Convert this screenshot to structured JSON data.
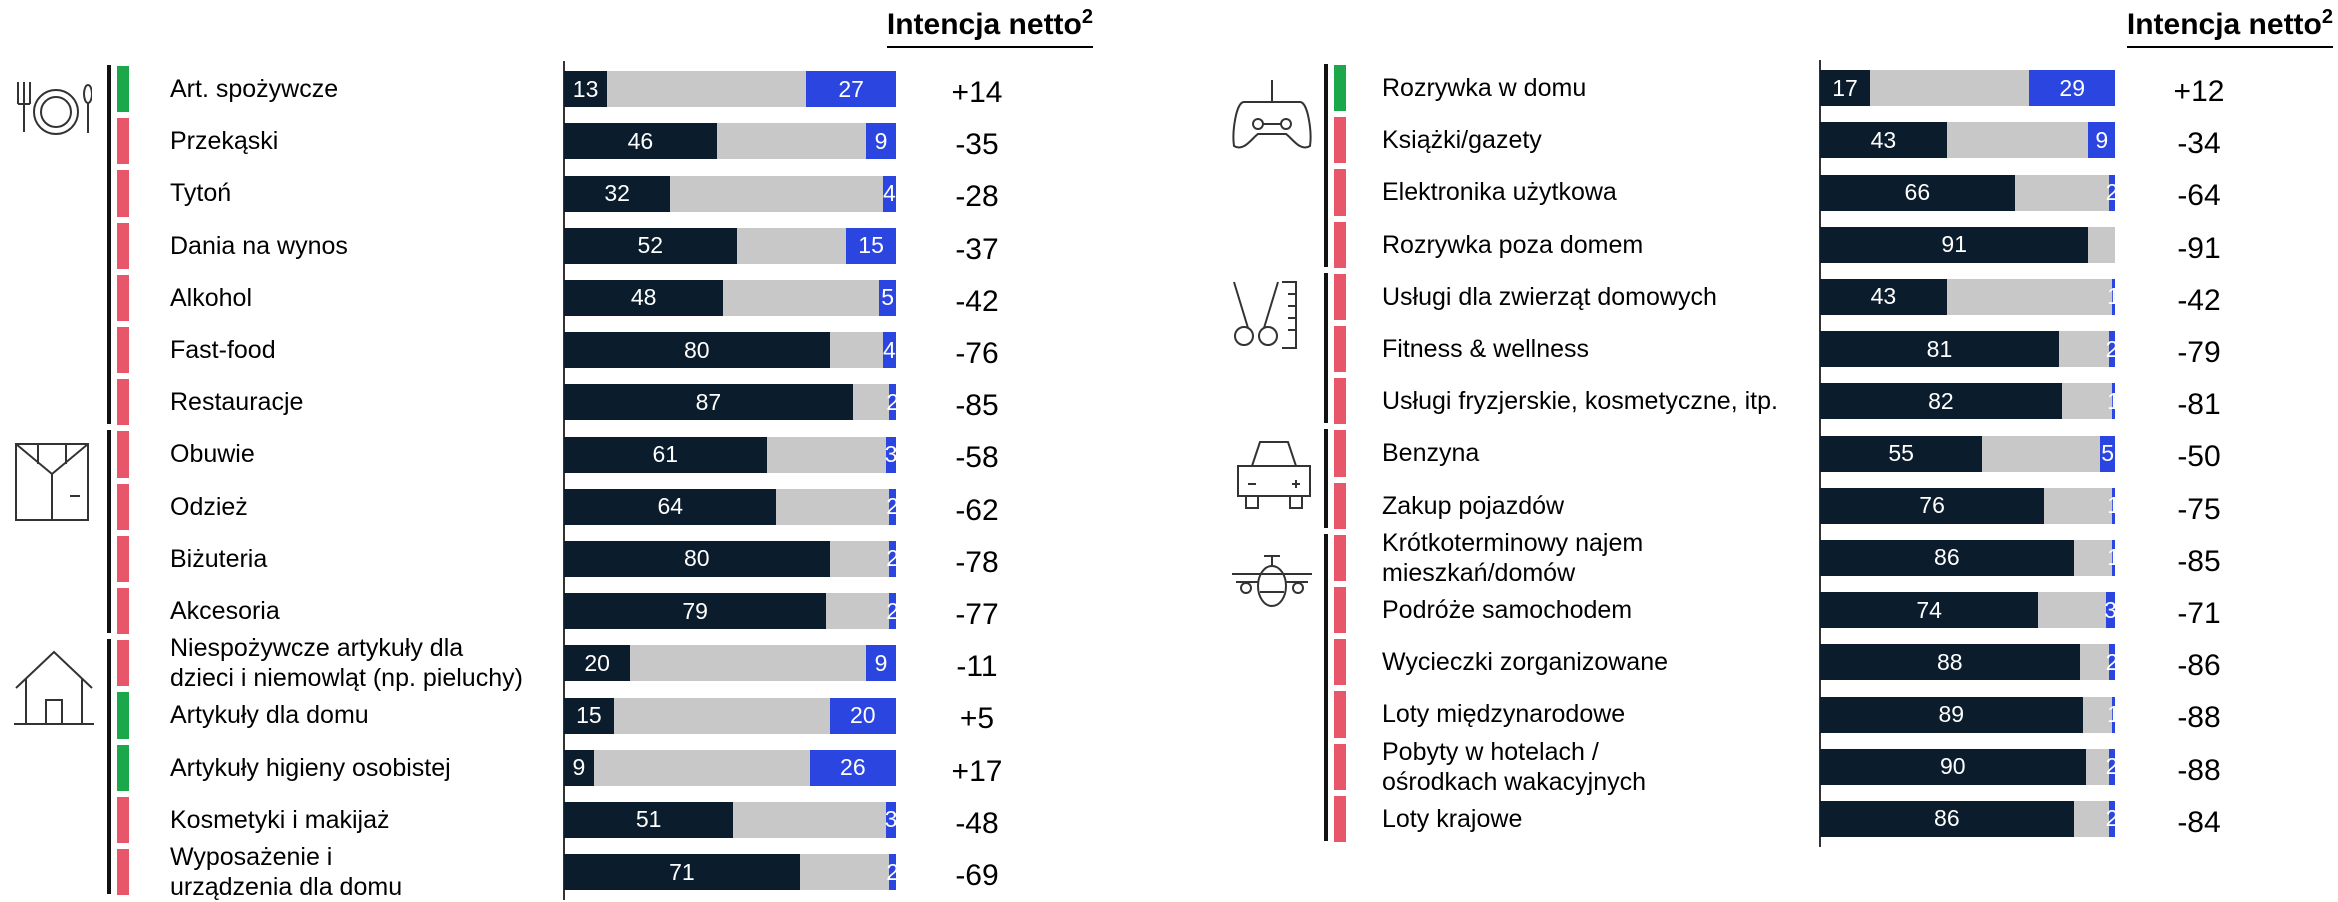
{
  "chart_data": [
    {
      "type": "bar",
      "orientation": "horizontal",
      "stacked": true,
      "title": "Intencja netto",
      "title_sup": "2",
      "categories": [
        "Art. spożywcze",
        "Przekąski",
        "Tytoń",
        "Dania na wynos",
        "Alkohol",
        "Fast-food",
        "Restauracje",
        "Obuwie",
        "Odzież",
        "Biżuteria",
        "Akcesoria",
        "Niespożywcze artykuły dla\ndzieci i niemowląt (np. pieluchy)",
        "Artykuły dla domu",
        "Artykuły higieny osobistej",
        "Kosmetyki i makijaż",
        "Wyposażenie i\nurządzenia dla domu"
      ],
      "indicator_colors": [
        "#1aa84a",
        "#e8566a",
        "#e8566a",
        "#e8566a",
        "#e8566a",
        "#e8566a",
        "#e8566a",
        "#e8566a",
        "#e8566a",
        "#e8566a",
        "#e8566a",
        "#e8566a",
        "#1aa84a",
        "#1aa84a",
        "#e8566a",
        "#e8566a"
      ],
      "series": [
        {
          "color": "#0b1c2c",
          "values": [
            13,
            46,
            32,
            52,
            48,
            80,
            87,
            61,
            64,
            80,
            79,
            20,
            15,
            9,
            51,
            71
          ]
        },
        {
          "color": "#c8c8c8",
          "values": [
            60,
            45,
            64,
            33,
            47,
            16,
            11,
            36,
            34,
            18,
            19,
            71,
            65,
            65,
            46,
            27
          ]
        },
        {
          "color": "#2a45e0",
          "values": [
            27,
            9,
            4,
            15,
            5,
            4,
            2,
            3,
            2,
            2,
            2,
            9,
            20,
            26,
            3,
            2
          ]
        }
      ],
      "net": {
        "values": [
          14,
          -35,
          -28,
          -37,
          -42,
          -76,
          -85,
          -58,
          -62,
          -78,
          -77,
          -11,
          5,
          17,
          -48,
          -69
        ],
        "value_labels": [
          "+14",
          "-35",
          "-28",
          "-37",
          "-42",
          "-76",
          "-85",
          "-58",
          "-62",
          "-78",
          "-77",
          "-11",
          "+5",
          "+17",
          "-48",
          "-69"
        ]
      },
      "xlim": [
        0,
        100
      ]
    },
    {
      "type": "bar",
      "orientation": "horizontal",
      "stacked": true,
      "title": "Intencja netto",
      "title_sup": "2",
      "categories": [
        "Rozrywka w domu",
        "Książki/gazety",
        "Elektronika użytkowa",
        "Rozrywka poza domem",
        "Usługi dla zwierząt domowych",
        "Fitness & wellness",
        "Usługi fryzjerskie, kosmetyczne, itp.",
        "Benzyna",
        "Zakup pojazdów",
        "Krótkoterminowy najem\nmieszkań/domów",
        "Podróże samochodem",
        "Wycieczki zorganizowane",
        "Loty międzynarodowe",
        "Pobyty w hotelach /\nośrodkach wakacyjnych",
        "Loty krajowe"
      ],
      "indicator_colors": [
        "#1aa84a",
        "#e8566a",
        "#e8566a",
        "#e8566a",
        "#e8566a",
        "#e8566a",
        "#e8566a",
        "#e8566a",
        "#e8566a",
        "#e8566a",
        "#e8566a",
        "#e8566a",
        "#e8566a",
        "#e8566a",
        "#e8566a"
      ],
      "series": [
        {
          "color": "#0b1c2c",
          "values": [
            17,
            43,
            66,
            91,
            43,
            81,
            82,
            55,
            76,
            86,
            74,
            88,
            89,
            90,
            86
          ]
        },
        {
          "color": "#c8c8c8",
          "values": [
            54,
            48,
            32,
            9,
            56,
            17,
            17,
            40,
            23,
            13,
            23,
            10,
            10,
            8,
            12
          ]
        },
        {
          "color": "#2a45e0",
          "values": [
            29,
            9,
            2,
            null,
            1,
            2,
            1,
            5,
            1,
            1,
            3,
            2,
            1,
            2,
            2
          ]
        }
      ],
      "net": {
        "values": [
          12,
          -34,
          -64,
          -91,
          -42,
          -79,
          -81,
          -50,
          -75,
          -85,
          -71,
          -86,
          -88,
          -88,
          -84
        ],
        "value_labels": [
          "+12",
          "-34",
          "-64",
          "-91",
          "-42",
          "-79",
          "-81",
          "-50",
          "-75",
          "-85",
          "-71",
          "-86",
          "-88",
          "-88",
          "-84"
        ]
      },
      "xlim": [
        0,
        100
      ]
    }
  ]
}
